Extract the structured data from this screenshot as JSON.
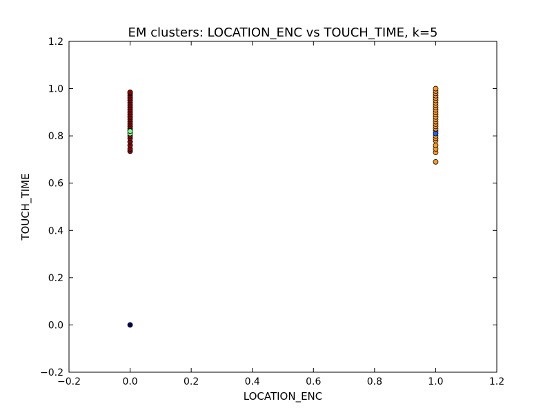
{
  "chart_data": {
    "type": "scatter",
    "title": "EM clusters: LOCATION_ENC vs TOUCH_TIME, k=5",
    "xlabel": "LOCATION_ENC",
    "ylabel": "TOUCH_TIME",
    "xlim": [
      -0.2,
      1.2
    ],
    "ylim": [
      -0.2,
      1.2
    ],
    "xticks": [
      "−0.2",
      "0.0",
      "0.2",
      "0.4",
      "0.6",
      "0.8",
      "1.0",
      "1.2"
    ],
    "yticks": [
      "−0.2",
      "0.0",
      "0.2",
      "0.4",
      "0.6",
      "0.8",
      "1.0",
      "1.2"
    ],
    "xtick_values": [
      -0.2,
      0.0,
      0.2,
      0.4,
      0.6,
      0.8,
      1.0,
      1.2
    ],
    "ytick_values": [
      -0.2,
      0.0,
      0.2,
      0.4,
      0.6,
      0.8,
      1.0,
      1.2
    ],
    "grid": false,
    "legend": "none",
    "series": [
      {
        "color": "#00005a",
        "points": [
          [
            0.0,
            0.0
          ]
        ]
      },
      {
        "color": "#8b0000",
        "points": [
          [
            0.0,
            0.735
          ],
          [
            0.0,
            0.745
          ],
          [
            0.0,
            0.76
          ],
          [
            0.0,
            0.775
          ],
          [
            0.0,
            0.79
          ],
          [
            0.0,
            0.8
          ],
          [
            0.0,
            0.83
          ],
          [
            0.0,
            0.84
          ],
          [
            0.0,
            0.85
          ],
          [
            0.0,
            0.86
          ],
          [
            0.0,
            0.87
          ],
          [
            0.0,
            0.88
          ],
          [
            0.0,
            0.89
          ],
          [
            0.0,
            0.9
          ],
          [
            0.0,
            0.91
          ],
          [
            0.0,
            0.92
          ],
          [
            0.0,
            0.93
          ],
          [
            0.0,
            0.94
          ],
          [
            0.0,
            0.95
          ],
          [
            0.0,
            0.96
          ],
          [
            0.0,
            0.97
          ],
          [
            0.0,
            0.98
          ],
          [
            0.0,
            0.985
          ]
        ]
      },
      {
        "color": "#7cff79",
        "points": [
          [
            0.0,
            0.81
          ],
          [
            0.0,
            0.82
          ]
        ]
      },
      {
        "color": "#ff9a1f",
        "points": [
          [
            1.0,
            0.69
          ],
          [
            1.0,
            0.73
          ],
          [
            1.0,
            0.745
          ],
          [
            1.0,
            0.76
          ],
          [
            1.0,
            0.78
          ],
          [
            1.0,
            0.79
          ],
          [
            1.0,
            0.8
          ],
          [
            1.0,
            0.82
          ],
          [
            1.0,
            0.83
          ],
          [
            1.0,
            0.84
          ],
          [
            1.0,
            0.85
          ],
          [
            1.0,
            0.86
          ],
          [
            1.0,
            0.87
          ],
          [
            1.0,
            0.88
          ],
          [
            1.0,
            0.89
          ],
          [
            1.0,
            0.9
          ],
          [
            1.0,
            0.91
          ],
          [
            1.0,
            0.92
          ],
          [
            1.0,
            0.93
          ],
          [
            1.0,
            0.94
          ],
          [
            1.0,
            0.95
          ],
          [
            1.0,
            0.96
          ],
          [
            1.0,
            0.97
          ],
          [
            1.0,
            0.98
          ],
          [
            1.0,
            0.99
          ],
          [
            1.0,
            1.0
          ]
        ]
      },
      {
        "color": "#1f5fff",
        "points": [
          [
            1.0,
            0.81
          ]
        ]
      }
    ]
  }
}
